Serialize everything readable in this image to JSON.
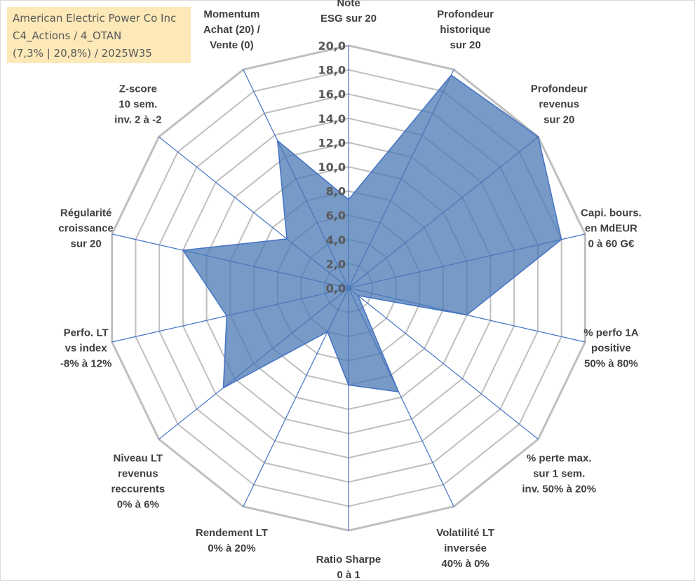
{
  "title_box": {
    "line1": "American Electric Power Co Inc",
    "line2": "C4_Actions / 4_OTAN",
    "line3": "(7,3% | 20,8%) / 2025W35"
  },
  "chart_data": {
    "type": "radar",
    "rmax": 20,
    "tick_step": 2,
    "ticks": [
      "0,0",
      "2,0",
      "4,0",
      "6,0",
      "8,0",
      "10,0",
      "12,0",
      "14,0",
      "16,0",
      "18,0",
      "20,0"
    ],
    "axes": [
      {
        "lines": [
          "Note",
          "ESG sur 20"
        ],
        "value": 7.3
      },
      {
        "lines": [
          "Profondeur",
          "historique",
          "sur 20"
        ],
        "value": 19.5
      },
      {
        "lines": [
          "Profondeur",
          "revenus",
          "sur 20"
        ],
        "value": 20.0
      },
      {
        "lines": [
          "Capi. bours.",
          "en MdEUR",
          "0 à 60 G€"
        ],
        "value": 18.0
      },
      {
        "lines": [
          "% perfo 1A",
          "positive",
          "50% à 80%"
        ],
        "value": 10.0
      },
      {
        "lines": [
          "% perte max.",
          "sur 1 sem.",
          "inv. 50% à 20%"
        ],
        "value": 1.0
      },
      {
        "lines": [
          "Volatilité LT",
          "inversée",
          "40% à 0%"
        ],
        "value": 9.5
      },
      {
        "lines": [
          "Ratio Sharpe",
          "0 à 1"
        ],
        "value": 8.0
      },
      {
        "lines": [
          "Rendement LT",
          "0% à 20%"
        ],
        "value": 4.0
      },
      {
        "lines": [
          "Niveau LT",
          "revenus",
          "reccurents",
          "0% à 6%"
        ],
        "value": 13.2
      },
      {
        "lines": [
          "Perfo. LT",
          "vs index",
          "-8% à 12%"
        ],
        "value": 10.3
      },
      {
        "lines": [
          "Régularité",
          "croissance",
          "sur 20"
        ],
        "value": 14.0
      },
      {
        "lines": [
          "Z-score",
          "10 sem.",
          "inv. 2 à -2"
        ],
        "value": 6.5
      },
      {
        "lines": [
          "Momentum",
          "Achat (20) /",
          "Vente (0)"
        ],
        "value": 13.5
      }
    ],
    "colors": {
      "fill": "#4a78b4",
      "fill_opacity": 0.75,
      "stroke": "#4472c4",
      "grid": "#bfbfbf",
      "spoke": "#4472c4",
      "label": "#404040"
    },
    "grid": true,
    "legend": "none"
  }
}
